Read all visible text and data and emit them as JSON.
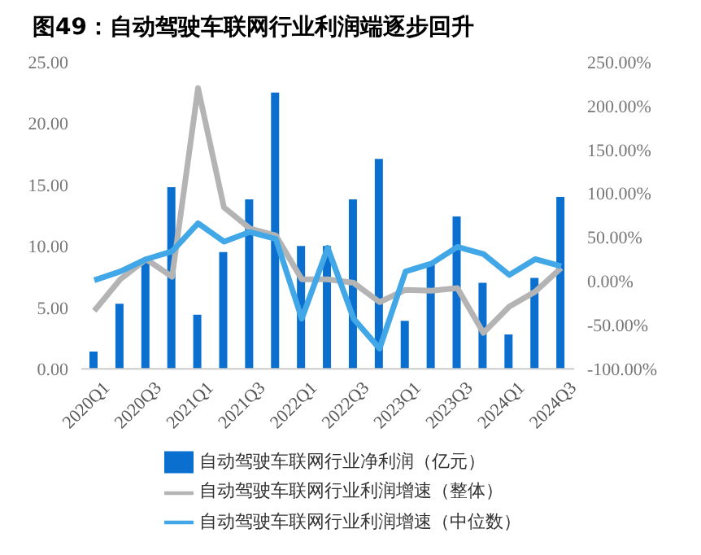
{
  "chart_data": {
    "type": "bar",
    "title": "图49：自动驾驶车联网行业利润端逐步回升",
    "categories": [
      "2020Q1",
      null,
      "2020Q3",
      null,
      "2021Q1",
      null,
      "2021Q3",
      null,
      "2022Q1",
      null,
      "2022Q3",
      null,
      "2023Q1",
      null,
      "2023Q3",
      null,
      "2024Q1",
      null,
      "2024Q3"
    ],
    "series": [
      {
        "name": "自动驾驶车联网行业净利润（亿元）",
        "color": "#0a6fcf",
        "values": [
          1.4,
          5.3,
          8.9,
          14.8,
          4.4,
          9.5,
          13.8,
          22.5,
          10,
          10,
          13.8,
          17.1,
          3.9,
          8.5,
          12.4,
          7.0,
          2.8,
          7.4,
          14.0
        ]
      },
      {
        "name": "自动驾驶车联网行业利润增速（整体）",
        "type": "line",
        "axis": "y2",
        "color": "#b4b4b4",
        "values": [
          -34,
          2,
          25,
          5,
          220,
          84,
          60,
          52,
          2,
          2,
          -2,
          -24,
          -10,
          -11,
          -8,
          -59,
          -29,
          -12,
          15
        ]
      },
      {
        "name": "自动驾驶车联网行业利润增速（中位数）",
        "type": "line",
        "axis": "y2",
        "color": "#42a7e6",
        "values": [
          1,
          11,
          25,
          34,
          66,
          45,
          56,
          48,
          -43,
          38,
          -43,
          -77,
          11,
          20,
          39,
          31,
          7,
          25,
          17
        ]
      }
    ],
    "ylim": [
      0,
      25
    ],
    "yticks": [
      {
        "value": 0,
        "label": "0.00"
      },
      {
        "value": 5,
        "label": "5.00"
      },
      {
        "value": 10,
        "label": "10.00"
      },
      {
        "value": 15,
        "label": "15.00"
      },
      {
        "value": 20,
        "label": "20.00"
      },
      {
        "value": 25,
        "label": "25.00"
      }
    ],
    "y2lim": [
      -100,
      250
    ],
    "y2ticks": [
      {
        "value": -100,
        "label": "-100.00%"
      },
      {
        "value": -50,
        "label": "-50.00%"
      },
      {
        "value": 0,
        "label": "0.00%"
      },
      {
        "value": 50,
        "label": "50.00%"
      },
      {
        "value": 100,
        "label": "100.00%"
      },
      {
        "value": 150,
        "label": "150.00%"
      },
      {
        "value": 200,
        "label": "200.00%"
      },
      {
        "value": 250,
        "label": "250.00%"
      }
    ],
    "legend": "bottom",
    "marker": "none",
    "grid": false
  }
}
